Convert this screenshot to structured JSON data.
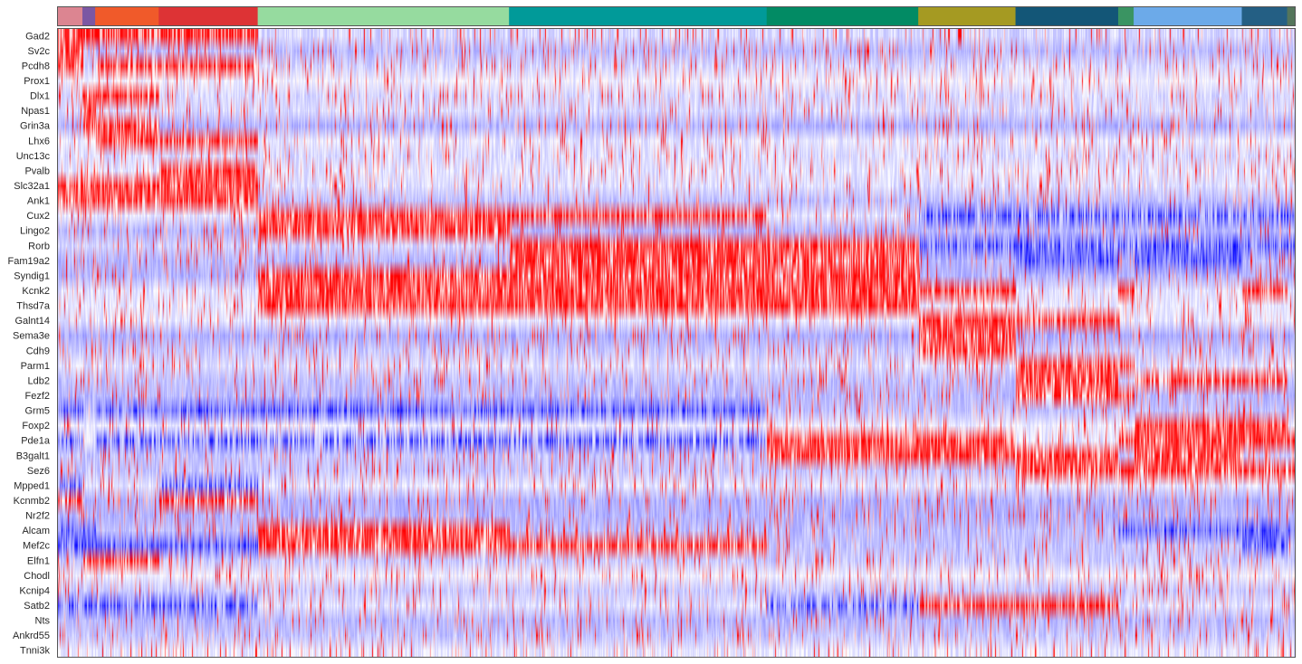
{
  "chart_data": {
    "type": "heatmap",
    "title": "",
    "xlabel": "",
    "ylabel": "",
    "colormap": "bwr",
    "colormap_colors": {
      "low": "#0000ff",
      "mid": "#ffffff",
      "high": "#ff0000"
    },
    "background_color": "#e6e6f8",
    "value_range": [
      -1,
      1
    ],
    "genes": [
      "Gad2",
      "Sv2c",
      "Pcdh8",
      "Prox1",
      "Dlx1",
      "Npas1",
      "Grin3a",
      "Lhx6",
      "Unc13c",
      "Pvalb",
      "Slc32a1",
      "Ank1",
      "Cux2",
      "Lingo2",
      "Rorb",
      "Fam19a2",
      "Syndig1",
      "Kcnk2",
      "Thsd7a",
      "Galnt14",
      "Sema3e",
      "Cdh9",
      "Parm1",
      "Ldb2",
      "Fezf2",
      "Grm5",
      "Foxp2",
      "Pde1a",
      "B3galt1",
      "Sez6",
      "Mpped1",
      "Kcnmb2",
      "Nr2f2",
      "Alcam",
      "Mef2c",
      "Elfn1",
      "Chodl",
      "Kcnip4",
      "Satb2",
      "Nts",
      "Ankrd55",
      "Tnni3k"
    ],
    "groups": [
      {
        "color": "#dc8591",
        "fraction": 0.0205,
        "markers": [
          "Gad2",
          "Sv2c",
          "Pcdh8",
          "Slc32a1",
          "Ank1",
          "Kcnmb2"
        ],
        "low": [
          "Mef2c",
          "Satb2",
          "Grm5",
          "Pde1a",
          "Alcam",
          "Mpped1"
        ]
      },
      {
        "color": "#7b57a3",
        "fraction": 0.0103,
        "markers": [
          "Gad2",
          "Npas1",
          "Grin3a",
          "Dlx1",
          "Slc32a1",
          "Ank1",
          "Elfn1"
        ],
        "low": [
          "Mef2c",
          "Satb2",
          "Alcam"
        ]
      },
      {
        "color": "#f05a2a",
        "fraction": 0.0513,
        "markers": [
          "Gad2",
          "Grin3a",
          "Lhx6",
          "Dlx1",
          "Slc32a1",
          "Ank1",
          "Elfn1",
          "Pcdh8"
        ],
        "low": [
          "Mef2c",
          "Satb2",
          "Pde1a",
          "Grm5"
        ]
      },
      {
        "color": "#dd3335",
        "fraction": 0.0799,
        "markers": [
          "Gad2",
          "Pvalb",
          "Slc32a1",
          "Ank1",
          "Lhx6",
          "Kcnmb2",
          "Pcdh8"
        ],
        "low": [
          "Mef2c",
          "Satb2",
          "Pde1a",
          "Grm5",
          "Mpped1"
        ]
      },
      {
        "color": "#96db9f",
        "fraction": 0.2029,
        "markers": [
          "Cux2",
          "Lingo2",
          "Syndig1",
          "Thsd7a",
          "Alcam",
          "Mef2c",
          "Kcnk2"
        ],
        "low": [
          "Grm5",
          "Pde1a"
        ]
      },
      {
        "color": "#019a99",
        "fraction": 0.208,
        "markers": [
          "Rorb",
          "Fam19a2",
          "Cux2",
          "Thsd7a",
          "Syndig1",
          "Kcnk2",
          "Mef2c"
        ],
        "low": [
          "Grm5",
          "Pde1a"
        ]
      },
      {
        "color": "#028b64",
        "fraction": 0.1224,
        "markers": [
          "Rorb",
          "Kcnk2",
          "Thsd7a",
          "Fam19a2",
          "Syndig1",
          "Pde1a",
          "B3galt1"
        ],
        "low": [
          "Satb2"
        ]
      },
      {
        "color": "#a59a22",
        "fraction": 0.0785,
        "markers": [
          "Galnt14",
          "Sema3e",
          "Cdh9",
          "Kcnk2",
          "Pde1a",
          "B3galt1",
          "Satb2"
        ],
        "low": [
          "Cux2",
          "Rorb"
        ]
      },
      {
        "color": "#135677",
        "fraction": 0.0829,
        "markers": [
          "Parm1",
          "Fezf2",
          "Ldb2",
          "Galnt14",
          "Sez6",
          "B3galt1",
          "Satb2"
        ],
        "low": [
          "Cux2",
          "Rorb",
          "Fam19a2"
        ]
      },
      {
        "color": "#3a9462",
        "fraction": 0.0125,
        "markers": [
          "Parm1",
          "Fezf2",
          "Kcnk2",
          "Sez6",
          "Pde1a"
        ],
        "low": [
          "Cux2",
          "Rorb",
          "Alcam"
        ]
      },
      {
        "color": "#6caae9",
        "fraction": 0.0873,
        "markers": [
          "Foxp2",
          "Sez6",
          "B3galt1",
          "Pde1a",
          "Ldb2"
        ],
        "low": [
          "Cux2",
          "Rorb",
          "Fam19a2",
          "Alcam"
        ]
      },
      {
        "color": "#245f84",
        "fraction": 0.0366,
        "markers": [
          "Foxp2",
          "Sez6",
          "Ldb2",
          "Pde1a",
          "Kcnk2"
        ],
        "low": [
          "Cux2",
          "Rorb",
          "Alcam",
          "Mef2c"
        ]
      },
      {
        "color": "#54755b",
        "fraction": 0.0059,
        "markers": [
          "Sez6",
          "Pde1a"
        ],
        "low": [
          "Cux2",
          "Rorb",
          "Alcam"
        ]
      }
    ]
  }
}
